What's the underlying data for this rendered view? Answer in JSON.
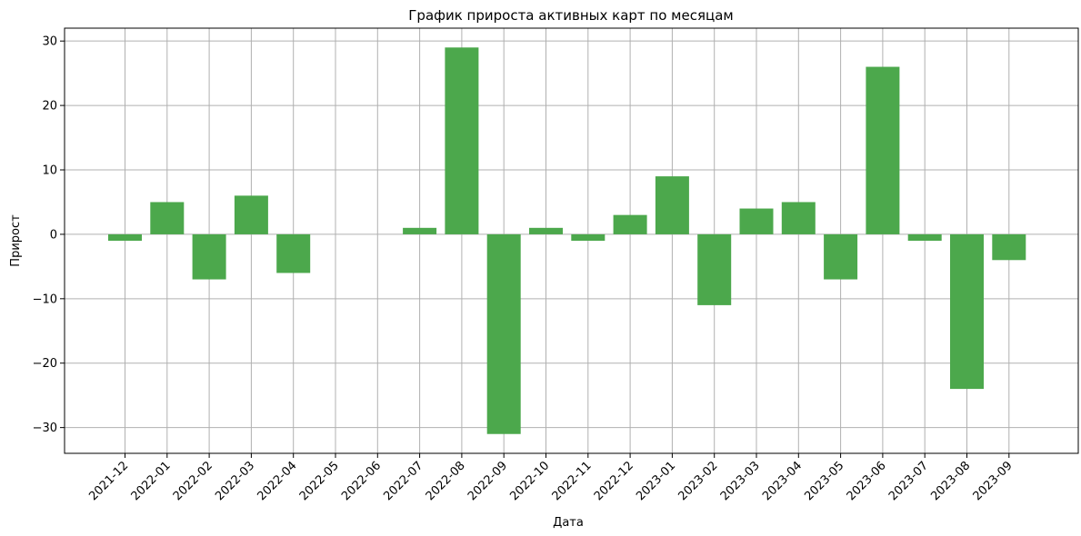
{
  "chart_data": {
    "type": "bar",
    "title": "График прироста активных карт по месяцам",
    "xlabel": "Дата",
    "ylabel": "Прирост",
    "categories": [
      "2021-12",
      "2022-01",
      "2022-02",
      "2022-03",
      "2022-04",
      "2022-05",
      "2022-06",
      "2022-07",
      "2022-08",
      "2022-09",
      "2022-10",
      "2022-11",
      "2022-12",
      "2023-01",
      "2023-02",
      "2023-03",
      "2023-04",
      "2023-05",
      "2023-06",
      "2023-07",
      "2023-08",
      "2023-09"
    ],
    "values": [
      -1,
      5,
      -7,
      6,
      -6,
      0,
      0,
      1,
      29,
      -31,
      1,
      -1,
      3,
      9,
      -11,
      4,
      5,
      -7,
      26,
      -1,
      -24,
      -4
    ],
    "ylim": [
      -34,
      32
    ],
    "yticks": [
      -30,
      -20,
      -10,
      0,
      10,
      20,
      30
    ],
    "ytick_labels": [
      "−30",
      "−20",
      "−10",
      "0",
      "10",
      "20",
      "30"
    ],
    "grid": true,
    "bar_color": "#4ca84c"
  }
}
